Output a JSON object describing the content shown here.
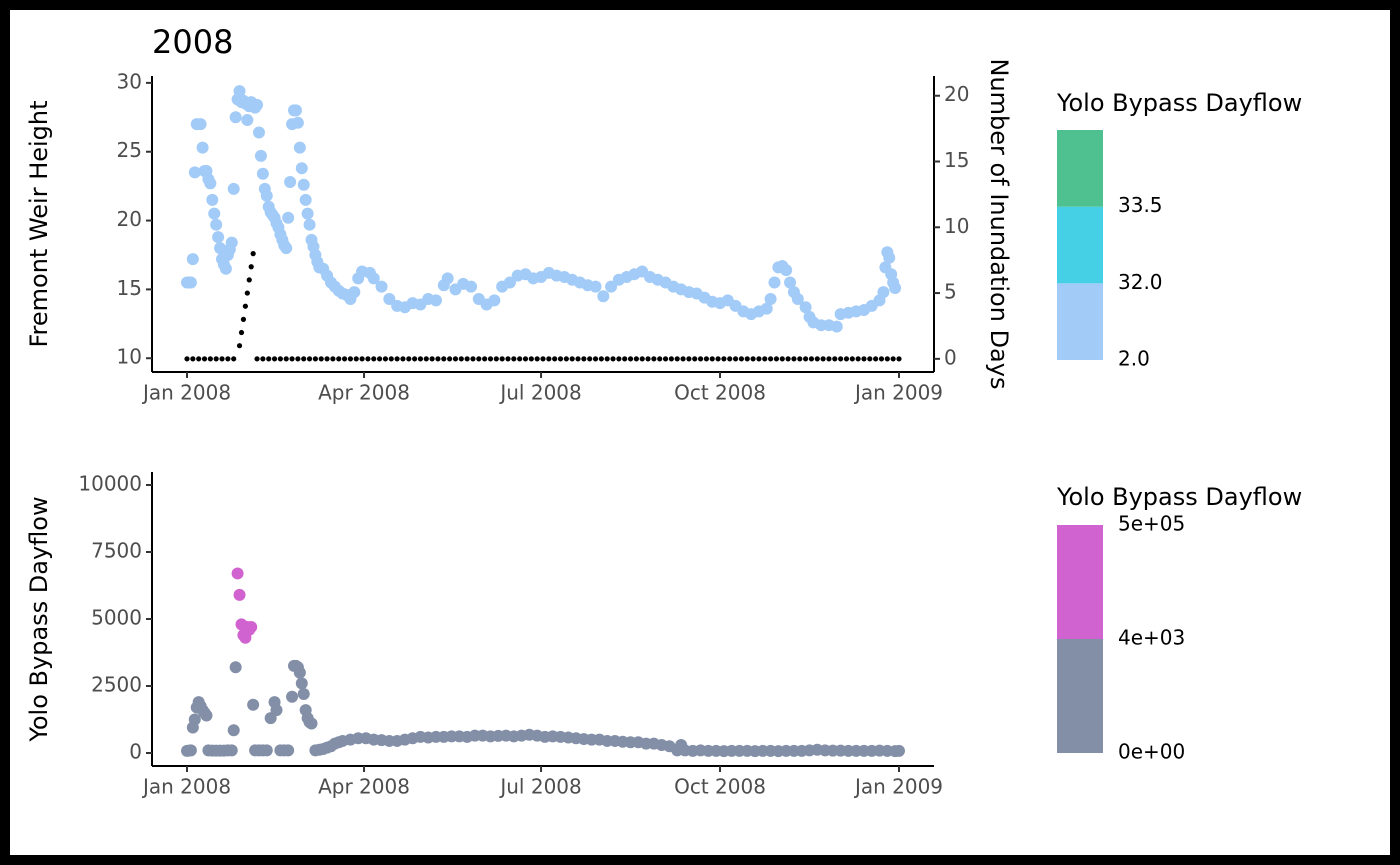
{
  "chart_data": [
    {
      "type": "scatter",
      "title": "2008",
      "y_label": "Fremont Weir Height",
      "y2_label": "Number of Inundation Days",
      "xlim": [
        -18,
        384
      ],
      "xticks": [
        {
          "value": 0,
          "label": "Jan 2008"
        },
        {
          "value": 91,
          "label": "Apr 2008"
        },
        {
          "value": 182,
          "label": "Jul 2008"
        },
        {
          "value": 274,
          "label": "Oct 2008"
        },
        {
          "value": 366,
          "label": "Jan 2009"
        }
      ],
      "ylim": [
        9,
        30.5
      ],
      "yticks": [
        10,
        15,
        20,
        25,
        30
      ],
      "y2lim": [
        -1,
        21.5
      ],
      "y2ticks": [
        0,
        5,
        10,
        15,
        20
      ],
      "series": [
        {
          "color": "#a3cbf7",
          "x": [
            0,
            1,
            2,
            3,
            4,
            5,
            7,
            8,
            9,
            10,
            11,
            12,
            13,
            14,
            15,
            16,
            17,
            18,
            19,
            20,
            21,
            22,
            23,
            24,
            25,
            26,
            27,
            28,
            29,
            30,
            31,
            32,
            33,
            34,
            35,
            36,
            37,
            38,
            39,
            40,
            41,
            42,
            43,
            44,
            45,
            46,
            47,
            48,
            49,
            50,
            51,
            52,
            53,
            54,
            55,
            56,
            57,
            58,
            59,
            60,
            61,
            62,
            63,
            64,
            65,
            66,
            67,
            68,
            70,
            72,
            74,
            76,
            78,
            80,
            82,
            84,
            86,
            88,
            90,
            94,
            96,
            100,
            104,
            108,
            112,
            116,
            120,
            124,
            128,
            132,
            134,
            138,
            142,
            146,
            150,
            154,
            158,
            162,
            166,
            170,
            174,
            178,
            182,
            186,
            190,
            194,
            198,
            202,
            206,
            210,
            214,
            218,
            222,
            226,
            230,
            234,
            238,
            242,
            246,
            250,
            254,
            258,
            262,
            266,
            270,
            274,
            278,
            282,
            286,
            290,
            294,
            298,
            300,
            302,
            304,
            306,
            308,
            310,
            312,
            314,
            318,
            320,
            322,
            326,
            330,
            334,
            336,
            340,
            344,
            348,
            352,
            356,
            358,
            359,
            360,
            361,
            362,
            363,
            364
          ],
          "values": [
            15.5,
            15.5,
            15.5,
            17.2,
            23.5,
            27,
            27,
            25.3,
            23.6,
            23.6,
            23,
            22.7,
            21.5,
            20.5,
            19.7,
            18.8,
            18,
            17.2,
            16.8,
            16.5,
            17.5,
            17.9,
            18.4,
            22.3,
            27.5,
            28.8,
            29.4,
            28.6,
            28.7,
            28.5,
            27.3,
            28.3,
            28.6,
            28.4,
            28.2,
            28.4,
            26.4,
            24.7,
            23.4,
            22.3,
            21.8,
            21,
            20.6,
            20.4,
            20.2,
            19.8,
            19.5,
            19,
            18.6,
            18.2,
            18,
            20.2,
            22.8,
            27,
            28,
            28,
            27.1,
            25.3,
            23.8,
            22.6,
            21.5,
            20.5,
            19.7,
            18.6,
            18.1,
            17.5,
            17,
            16.6,
            16.5,
            16,
            15.5,
            15.2,
            14.9,
            14.7,
            14.6,
            14.3,
            14.8,
            15.8,
            16.3,
            16.2,
            15.8,
            15.2,
            14.3,
            13.8,
            13.7,
            14,
            13.9,
            14.3,
            14.2,
            15.3,
            15.8,
            15,
            15.4,
            15.2,
            14.3,
            13.9,
            14.2,
            15.2,
            15.5,
            16,
            16.1,
            15.8,
            15.9,
            16.2,
            16,
            15.9,
            15.7,
            15.5,
            15.3,
            15.2,
            14.5,
            15.2,
            15.7,
            15.9,
            16.1,
            16.3,
            15.9,
            15.7,
            15.5,
            15.2,
            15,
            14.8,
            14.7,
            14.4,
            14.1,
            14,
            14.2,
            13.8,
            13.4,
            13.2,
            13.4,
            13.6,
            14.3,
            15.5,
            16.6,
            16.7,
            16.4,
            15.5,
            14.8,
            14.3,
            13.7,
            13,
            12.6,
            12.4,
            12.4,
            12.3,
            13.2,
            13.3,
            13.4,
            13.5,
            13.8,
            14.2,
            14.8,
            16.6,
            17.7,
            17.3,
            16.1,
            15.5,
            15.1
          ]
        },
        {
          "color": "#000000",
          "axis": "y2",
          "x": [
            0,
            3,
            6,
            9,
            12,
            15,
            18,
            21,
            24,
            27,
            28,
            29,
            30,
            31,
            32,
            33,
            34,
            36,
            39,
            42,
            45,
            48,
            51,
            54,
            57,
            60,
            63,
            66,
            69,
            72,
            75,
            78,
            81,
            84,
            87,
            90,
            93,
            96,
            99,
            102,
            105,
            108,
            111,
            114,
            117,
            120,
            123,
            126,
            129,
            132,
            135,
            138,
            141,
            144,
            147,
            150,
            153,
            156,
            159,
            162,
            165,
            168,
            171,
            174,
            177,
            180,
            183,
            186,
            189,
            192,
            195,
            198,
            201,
            204,
            207,
            210,
            213,
            216,
            219,
            222,
            225,
            228,
            231,
            234,
            237,
            240,
            243,
            246,
            249,
            252,
            255,
            258,
            261,
            264,
            267,
            270,
            273,
            276,
            279,
            282,
            285,
            288,
            291,
            294,
            297,
            300,
            303,
            306,
            309,
            312,
            315,
            318,
            321,
            324,
            327,
            330,
            333,
            336,
            339,
            342,
            345,
            348,
            351,
            354,
            357,
            360,
            363,
            366
          ],
          "values": [
            0,
            0,
            0,
            0,
            0,
            0,
            0,
            0,
            0,
            1,
            2,
            3,
            4,
            5,
            6,
            7,
            8,
            0,
            0,
            0,
            0,
            0,
            0,
            0,
            0,
            0,
            0,
            0,
            0,
            0,
            0,
            0,
            0,
            0,
            0,
            0,
            0,
            0,
            0,
            0,
            0,
            0,
            0,
            0,
            0,
            0,
            0,
            0,
            0,
            0,
            0,
            0,
            0,
            0,
            0,
            0,
            0,
            0,
            0,
            0,
            0,
            0,
            0,
            0,
            0,
            0,
            0,
            0,
            0,
            0,
            0,
            0,
            0,
            0,
            0,
            0,
            0,
            0,
            0,
            0,
            0,
            0,
            0,
            0,
            0,
            0,
            0,
            0,
            0,
            0,
            0,
            0,
            0,
            0,
            0,
            0,
            0,
            0,
            0,
            0,
            0,
            0,
            0,
            0,
            0,
            0,
            0,
            0,
            0,
            0,
            0,
            0,
            0,
            0,
            0,
            0,
            0,
            0,
            0,
            0,
            0,
            0,
            0,
            0,
            0,
            0,
            0,
            0
          ]
        }
      ],
      "legend": {
        "title": "Yolo Bypass Dayflow",
        "breaks": [
          {
            "value": 2,
            "label": "2.0"
          },
          {
            "value": 32,
            "label": "32.0"
          },
          {
            "value": 33.5,
            "label": "33.5"
          }
        ],
        "colors": [
          "#a3cbf7",
          "#45d0e5",
          "#4fc08f"
        ]
      }
    },
    {
      "type": "scatter",
      "y_label": "Yolo Bypass Dayflow",
      "xlim": [
        -18,
        384
      ],
      "xticks": [
        {
          "value": 0,
          "label": "Jan 2008"
        },
        {
          "value": 91,
          "label": "Apr 2008"
        },
        {
          "value": 182,
          "label": "Jul 2008"
        },
        {
          "value": 274,
          "label": "Oct 2008"
        },
        {
          "value": 366,
          "label": "Jan 2009"
        }
      ],
      "ylim": [
        -485,
        10485
      ],
      "yticks": [
        0,
        2500,
        5000,
        7500,
        10000
      ],
      "series": [
        {
          "x": [
            0,
            1,
            2,
            3,
            4,
            5,
            6,
            7,
            8,
            9,
            10,
            11,
            13,
            15,
            17,
            19,
            21,
            23,
            24,
            25,
            26,
            27,
            28,
            29,
            30,
            31,
            32,
            33,
            34,
            35,
            37,
            39,
            41,
            43,
            45,
            46,
            48,
            50,
            52,
            54,
            55,
            56,
            57,
            58,
            59,
            60,
            61,
            62,
            63,
            64,
            66,
            68,
            70,
            72,
            74,
            76,
            78,
            80,
            84,
            88,
            92,
            96,
            100,
            104,
            108,
            112,
            116,
            120,
            124,
            128,
            132,
            136,
            140,
            144,
            148,
            152,
            156,
            160,
            164,
            168,
            172,
            176,
            180,
            184,
            188,
            192,
            196,
            200,
            204,
            208,
            212,
            216,
            220,
            224,
            228,
            232,
            236,
            240,
            244,
            248,
            252,
            254,
            256,
            260,
            264,
            268,
            272,
            276,
            280,
            284,
            288,
            292,
            296,
            300,
            304,
            308,
            312,
            316,
            320,
            324,
            328,
            332,
            336,
            340,
            344,
            348,
            352,
            356,
            360,
            364,
            366
          ],
          "values": [
            80,
            90,
            100,
            950,
            1250,
            1700,
            1900,
            1750,
            1600,
            1500,
            1400,
            100,
            90,
            90,
            90,
            90,
            100,
            100,
            850,
            3200,
            6700,
            5900,
            4800,
            4400,
            4300,
            4700,
            4600,
            4700,
            1800,
            100,
            100,
            100,
            100,
            1300,
            1900,
            1600,
            100,
            100,
            100,
            2100,
            3250,
            3250,
            3200,
            3000,
            2600,
            2200,
            1600,
            1300,
            1150,
            1100,
            100,
            120,
            150,
            200,
            250,
            350,
            400,
            450,
            500,
            550,
            550,
            500,
            480,
            450,
            450,
            500,
            550,
            600,
            580,
            600,
            600,
            620,
            620,
            600,
            650,
            650,
            620,
            640,
            650,
            620,
            650,
            680,
            650,
            600,
            620,
            600,
            580,
            550,
            520,
            500,
            500,
            450,
            450,
            420,
            400,
            400,
            350,
            350,
            300,
            250,
            100,
            300,
            100,
            80,
            100,
            80,
            80,
            70,
            80,
            80,
            80,
            70,
            80,
            80,
            70,
            80,
            80,
            80,
            100,
            120,
            100,
            90,
            90,
            80,
            80,
            80,
            80,
            90,
            80,
            70,
            80
          ]
        }
      ],
      "legend": {
        "title": "Yolo Bypass Dayflow",
        "breaks": [
          {
            "value": 0,
            "label": "0e+00"
          },
          {
            "value": 4000,
            "label": "4e+03"
          },
          {
            "value": 500000,
            "label": "5e+05"
          }
        ],
        "colors": [
          "#838fa7",
          "#d063d0"
        ]
      }
    }
  ]
}
